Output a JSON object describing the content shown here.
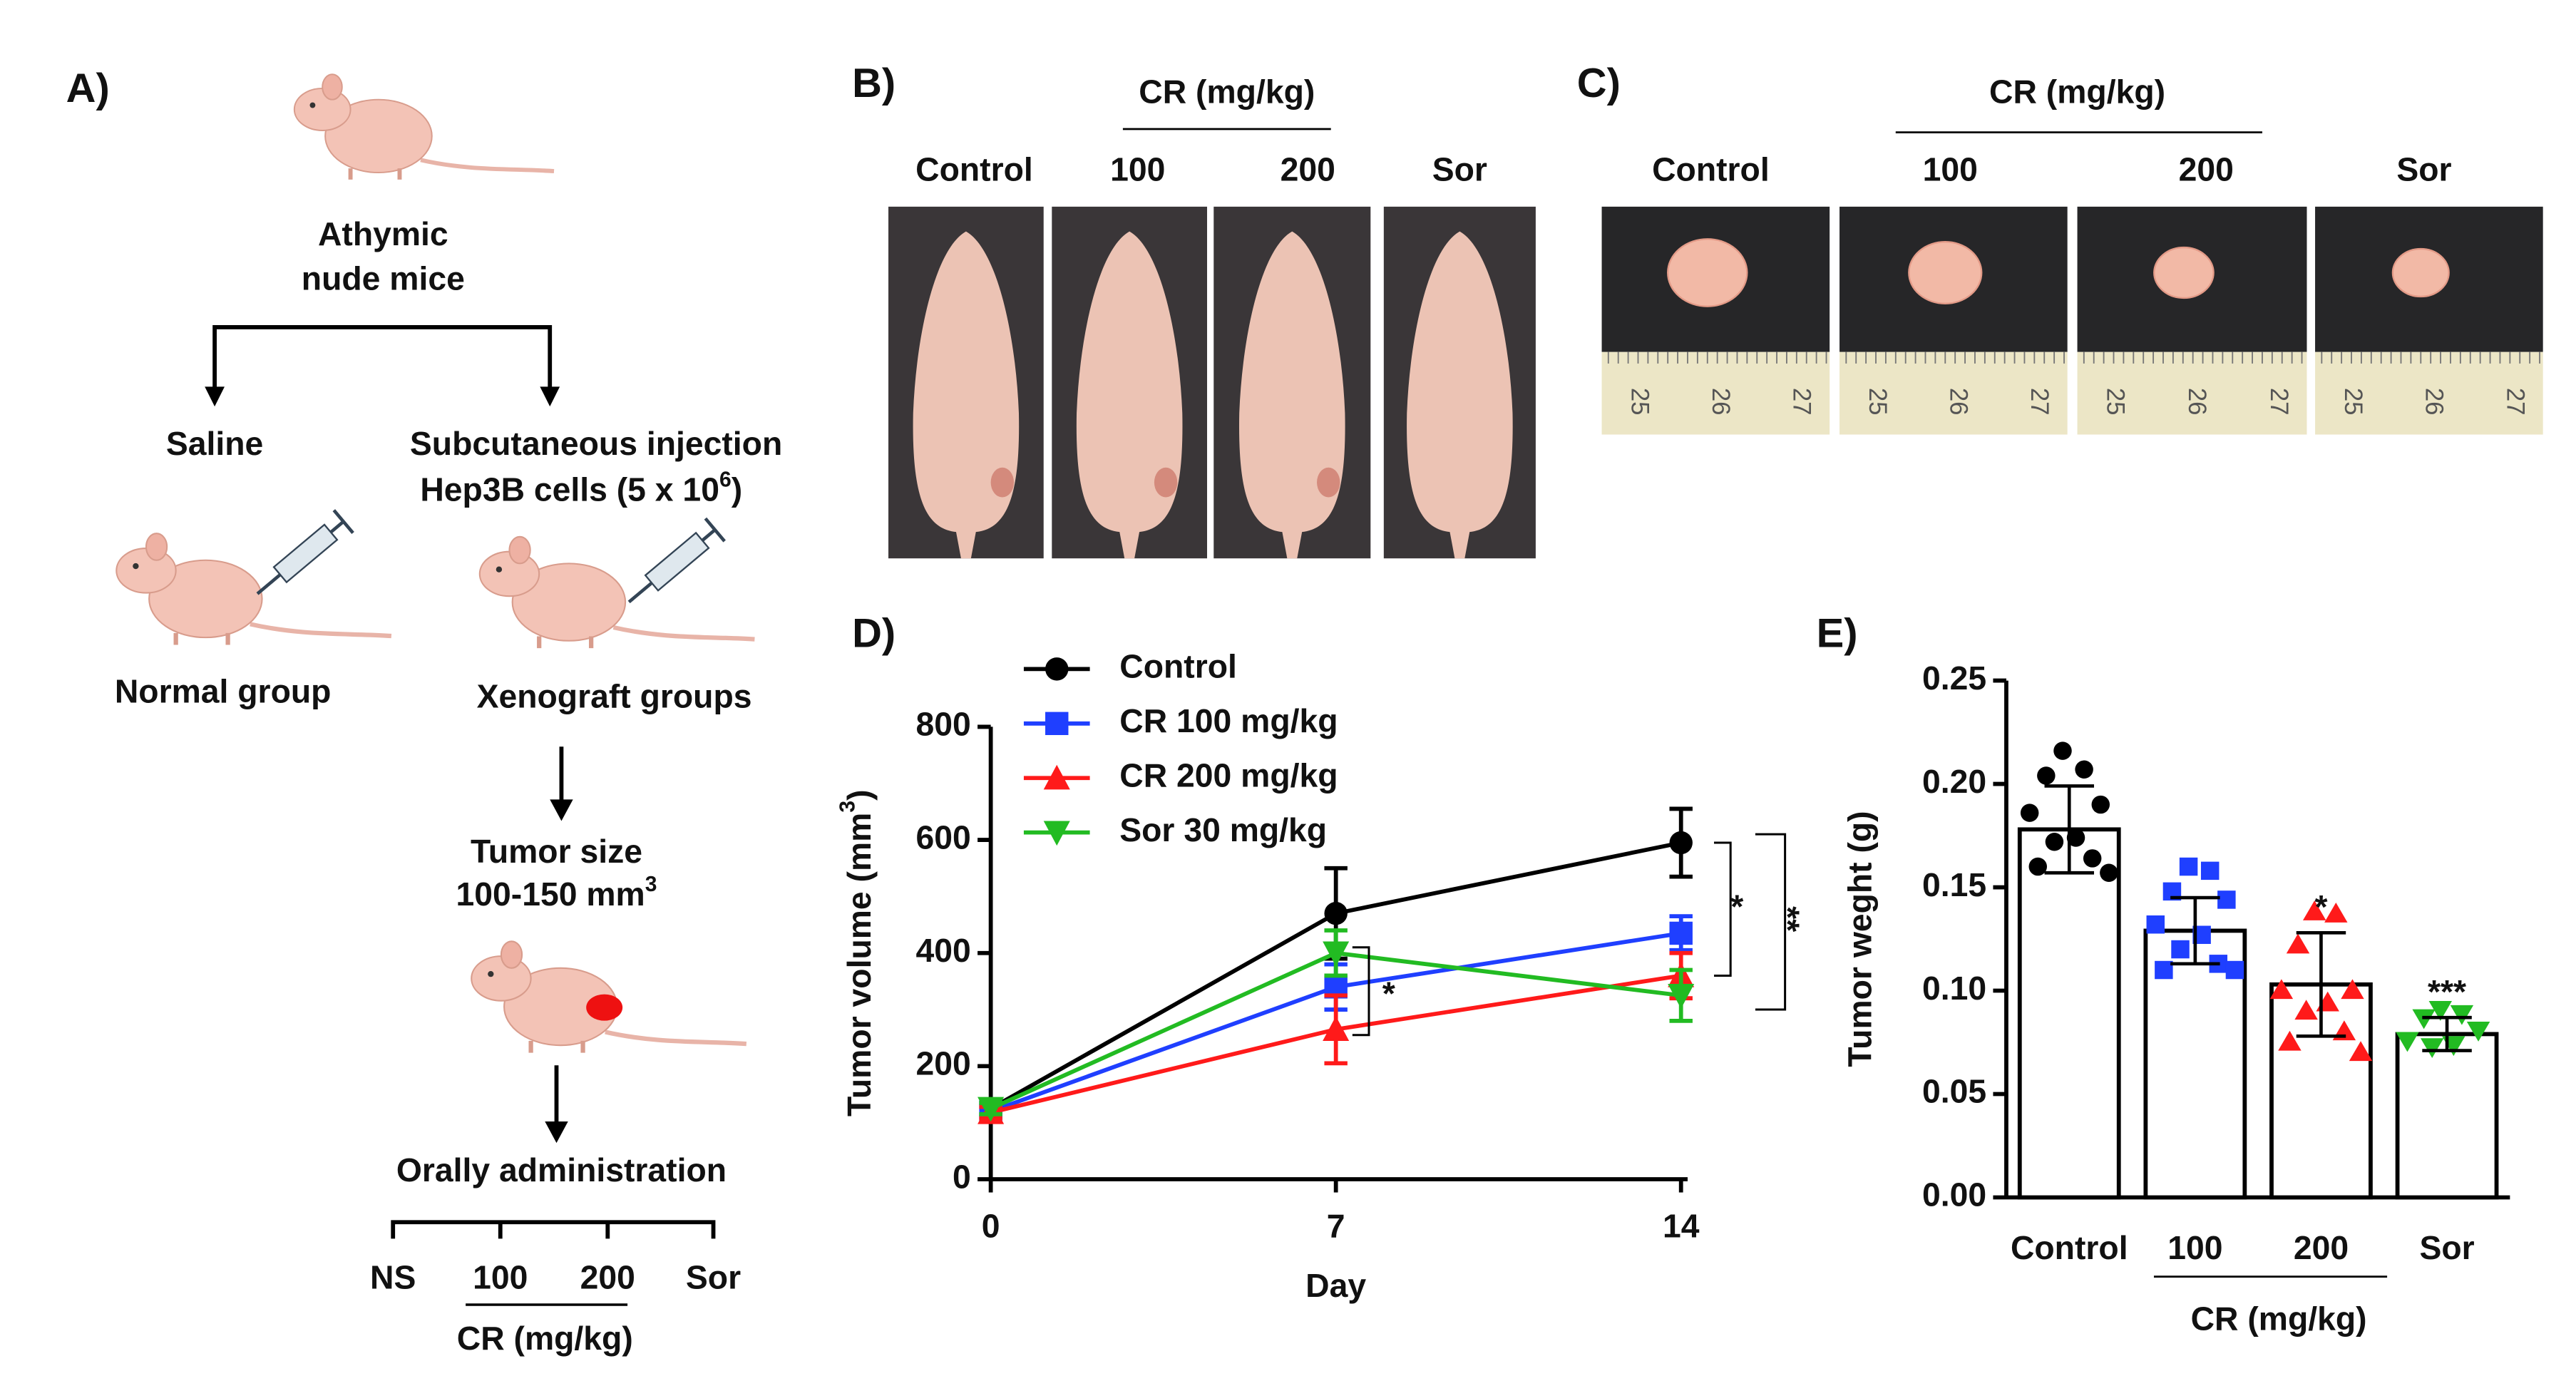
{
  "panel_a": {
    "label": "A)",
    "mice": [
      "Athymic",
      "nude mice"
    ],
    "saline": "Saline",
    "injection": "Subcutaneous injection",
    "cells": "Hep3B cells (5 x 10",
    "cells_sup": "6",
    "cells_end": ")",
    "normal": "Normal group",
    "xenograft": "Xenograft groups",
    "tumor_size": "Tumor size",
    "tumor_range": "100-150 mm",
    "tumor_range_sup": "3",
    "oral": "Orally administration",
    "groups": [
      "NS",
      "100",
      "200",
      "Sor"
    ],
    "group_header": "CR (mg/kg)"
  },
  "panel_b": {
    "label": "B)",
    "group_header": "CR (mg/kg)",
    "columns": [
      "Control",
      "100",
      "200",
      "Sor"
    ]
  },
  "panel_c": {
    "label": "C)",
    "group_header": "CR (mg/kg)",
    "columns": [
      "Control",
      "100",
      "200",
      "Sor"
    ],
    "ruler_ticks": [
      "25",
      "26",
      "27"
    ]
  },
  "chart_data": [
    {
      "type": "line",
      "label": "D)",
      "ylabel": "Tumor volume (mm",
      "ylabel_sup": "3",
      "ylabel_end": ")",
      "xlabel": "Day",
      "x": [
        0,
        7,
        14
      ],
      "xlim": [
        0,
        14
      ],
      "xticks": [
        0,
        7,
        14
      ],
      "ylim": [
        0,
        800
      ],
      "yticks": [
        0,
        200,
        400,
        600,
        800
      ],
      "legend": "upper left",
      "series": [
        {
          "name": "Control",
          "color": "#000000",
          "marker": "circle",
          "values": [
            125,
            470,
            595
          ],
          "errors": [
            10,
            80,
            60
          ]
        },
        {
          "name": "CR 100 mg/kg",
          "color": "#1f3fff",
          "marker": "square",
          "values": [
            120,
            340,
            435
          ],
          "errors": [
            10,
            40,
            30
          ]
        },
        {
          "name": "CR 200 mg/kg",
          "color": "#ff1a1a",
          "marker": "triangle-up",
          "values": [
            118,
            265,
            360
          ],
          "errors": [
            10,
            60,
            40
          ]
        },
        {
          "name": "Sor 30 mg/kg",
          "color": "#22bb22",
          "marker": "triangle-down",
          "values": [
            125,
            400,
            325
          ],
          "errors": [
            10,
            40,
            45
          ]
        }
      ],
      "significance": [
        "*",
        "**",
        "*"
      ]
    },
    {
      "type": "bar",
      "label": "E)",
      "ylabel": "Tumor weght (g)",
      "group_header": "CR (mg/kg)",
      "categories": [
        "Control",
        "100",
        "200",
        "Sor"
      ],
      "values": [
        0.178,
        0.129,
        0.103,
        0.079
      ],
      "errors": [
        0.021,
        0.016,
        0.025,
        0.008
      ],
      "colors": [
        "#000000",
        "#1f3fff",
        "#ff1a1a",
        "#22bb22"
      ],
      "points": [
        [
          0.216,
          0.207,
          0.204,
          0.19,
          0.186,
          0.174,
          0.172,
          0.164,
          0.16,
          0.157
        ],
        [
          0.16,
          0.158,
          0.148,
          0.144,
          0.132,
          0.127,
          0.12,
          0.113,
          0.11,
          0.11
        ],
        [
          0.138,
          0.137,
          0.122,
          0.1,
          0.1,
          0.094,
          0.09,
          0.08,
          0.075,
          0.07
        ],
        [
          0.091,
          0.089,
          0.087,
          0.081,
          0.076,
          0.074,
          0.073
        ]
      ],
      "ylim": [
        0,
        0.25
      ],
      "yticks": [
        {
          "value": 0,
          "label": "0.00"
        },
        {
          "value": 0.05,
          "label": "0.05"
        },
        {
          "value": 0.1,
          "label": "0.10"
        },
        {
          "value": 0.15,
          "label": "0.15"
        },
        {
          "value": 0.2,
          "label": "0.20"
        },
        {
          "value": 0.25,
          "label": "0.25"
        }
      ],
      "significance": [
        "*",
        "***"
      ]
    }
  ]
}
